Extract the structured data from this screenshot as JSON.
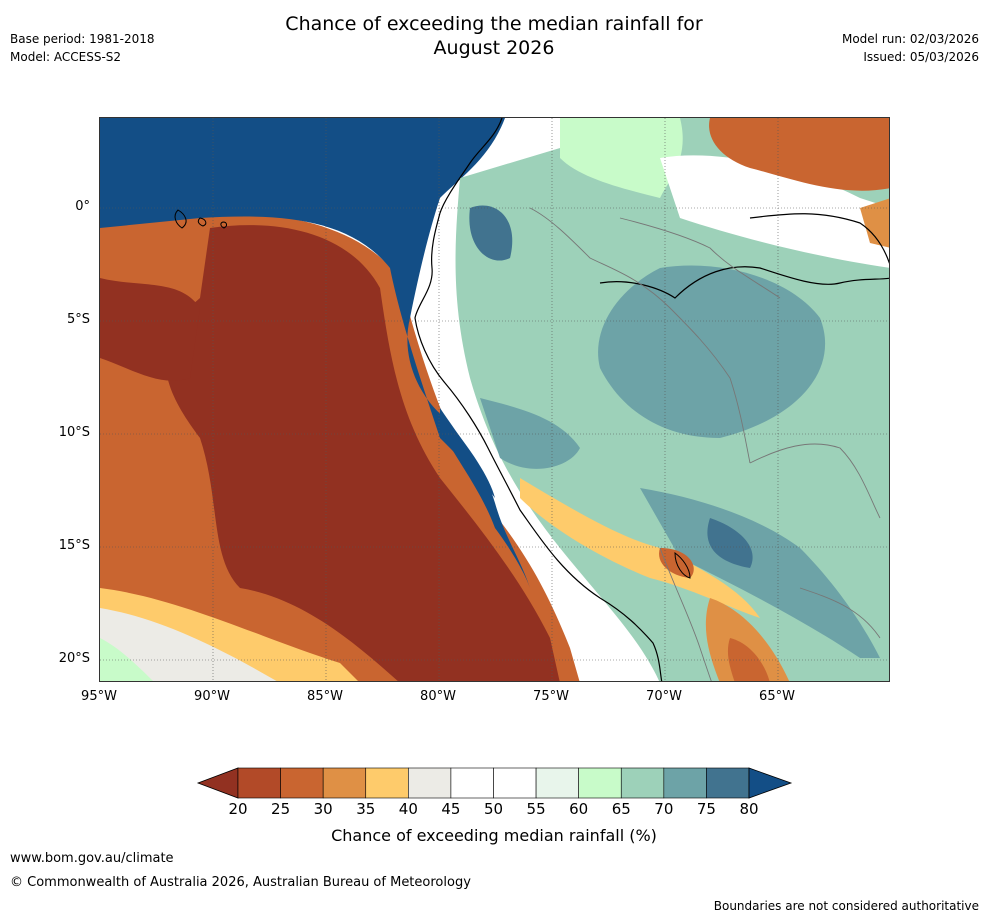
{
  "header": {
    "title_line1": "Chance of exceeding the median rainfall for",
    "title_line2": "August 2026",
    "base_period": "Base period: 1981-2018",
    "model": "Model: ACCESS-S2",
    "model_run": "Model run: 02/03/2026",
    "issued": "Issued: 05/03/2026"
  },
  "map": {
    "lat_ticks": [
      "0°",
      "5°S",
      "10°S",
      "15°S",
      "20°S"
    ],
    "lon_ticks": [
      "95°W",
      "90°W",
      "85°W",
      "80°W",
      "75°W",
      "70°W",
      "65°W"
    ]
  },
  "colorbar": {
    "label": "Chance of exceeding median rainfall (%)",
    "ticks": [
      "20",
      "25",
      "30",
      "35",
      "40",
      "45",
      "50",
      "55",
      "60",
      "65",
      "70",
      "75",
      "80"
    ],
    "colors": [
      "#923121",
      "#b24a28",
      "#c96530",
      "#df9045",
      "#fecb6b",
      "#ecebe6",
      "#ffffff",
      "#ffffff",
      "#e8f5eb",
      "#c8fbc9",
      "#9dd1b9",
      "#6da3a7",
      "#41738f",
      "#134e86"
    ]
  },
  "footer": {
    "website": "www.bom.gov.au/climate",
    "copyright": "© Commonwealth of Australia 2026, Australian Bureau of Meteorology",
    "disclaimer": "Boundaries are not considered authoritative"
  }
}
